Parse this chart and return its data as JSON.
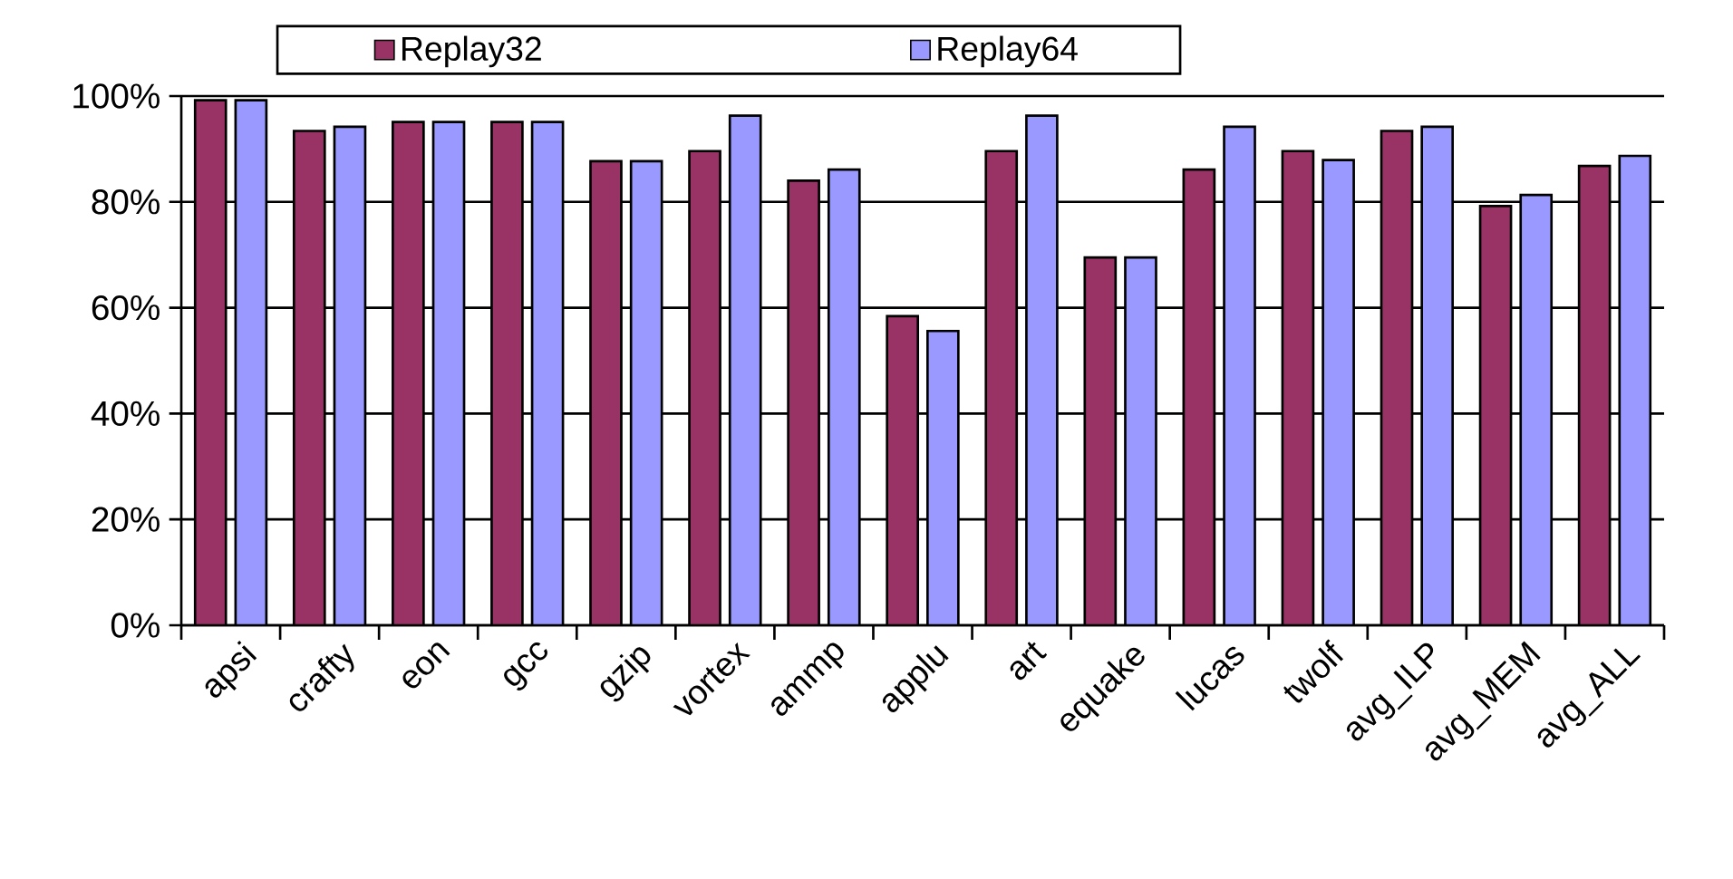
{
  "chart_data": {
    "type": "bar",
    "categories": [
      "apsi",
      "crafty",
      "eon",
      "gcc",
      "gzip",
      "vortex",
      "ammp",
      "applu",
      "art",
      "equake",
      "lucas",
      "twolf",
      "avg_ILP",
      "avg_MEM",
      "avg_ALL"
    ],
    "series": [
      {
        "name": "Replay32",
        "color": "#993366",
        "values": [
          99.2,
          93.4,
          95.1,
          95.1,
          87.7,
          89.6,
          84.0,
          58.4,
          89.6,
          69.5,
          86.1,
          89.6,
          93.4,
          79.2,
          86.8
        ]
      },
      {
        "name": "Replay64",
        "color": "#9999ff",
        "values": [
          99.2,
          94.2,
          95.1,
          95.1,
          87.7,
          96.3,
          86.1,
          55.6,
          96.3,
          69.5,
          94.2,
          87.9,
          94.2,
          81.3,
          88.7
        ]
      }
    ],
    "ylim": [
      0,
      100
    ],
    "yticks": [
      {
        "value": 0,
        "label": "0%"
      },
      {
        "value": 20,
        "label": "20%"
      },
      {
        "value": 40,
        "label": "40%"
      },
      {
        "value": 60,
        "label": "60%"
      },
      {
        "value": 80,
        "label": "80%"
      },
      {
        "value": 100,
        "label": "100%"
      }
    ],
    "grid": "y",
    "legend": "top"
  }
}
